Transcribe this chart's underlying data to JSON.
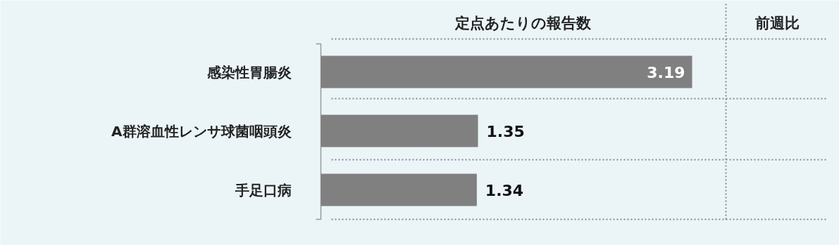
{
  "chart_data": {
    "type": "bar",
    "orientation": "horizontal",
    "title": "定点あたりの報告数",
    "categories": [
      "感染性胃腸炎",
      "A群溶血性レンサ球菌咽頭炎",
      "手足口病"
    ],
    "values": [
      3.19,
      1.35,
      1.34
    ],
    "color": "#808080",
    "data_labels": true,
    "annotations": [
      "前週比"
    ]
  }
}
